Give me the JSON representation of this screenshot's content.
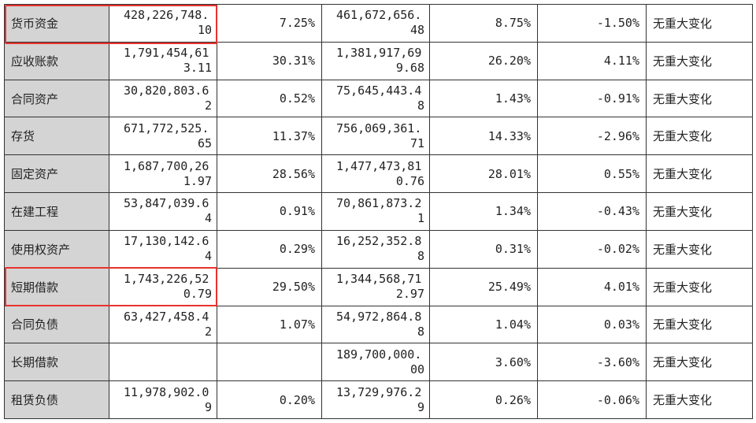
{
  "rows": [
    {
      "label": "货币资金",
      "cur_a": "428,226,748.",
      "cur_b": "10",
      "cur_pct": "7.25%",
      "prev_a": "461,672,656.",
      "prev_b": "48",
      "prev_pct": "8.75%",
      "change": "-1.50%",
      "note": "无重大变化",
      "highlight": true
    },
    {
      "label": "应收账款",
      "cur_a": "1,791,454,61",
      "cur_b": "3.11",
      "cur_pct": "30.31%",
      "prev_a": "1,381,917,69",
      "prev_b": "9.68",
      "prev_pct": "26.20%",
      "change": "4.11%",
      "note": "无重大变化",
      "highlight": false
    },
    {
      "label": "合同资产",
      "cur_a": "30,820,803.6",
      "cur_b": "2",
      "cur_pct": "0.52%",
      "prev_a": "75,645,443.4",
      "prev_b": "8",
      "prev_pct": "1.43%",
      "change": "-0.91%",
      "note": "无重大变化",
      "highlight": false
    },
    {
      "label": "存货",
      "cur_a": "671,772,525.",
      "cur_b": "65",
      "cur_pct": "11.37%",
      "prev_a": "756,069,361.",
      "prev_b": "71",
      "prev_pct": "14.33%",
      "change": "-2.96%",
      "note": "无重大变化",
      "highlight": false
    },
    {
      "label": "固定资产",
      "cur_a": "1,687,700,26",
      "cur_b": "1.97",
      "cur_pct": "28.56%",
      "prev_a": "1,477,473,81",
      "prev_b": "0.76",
      "prev_pct": "28.01%",
      "change": "0.55%",
      "note": "无重大变化",
      "highlight": false
    },
    {
      "label": "在建工程",
      "cur_a": "53,847,039.6",
      "cur_b": "4",
      "cur_pct": "0.91%",
      "prev_a": "70,861,873.2",
      "prev_b": "1",
      "prev_pct": "1.34%",
      "change": "-0.43%",
      "note": "无重大变化",
      "highlight": false
    },
    {
      "label": "使用权资产",
      "cur_a": "17,130,142.6",
      "cur_b": "4",
      "cur_pct": "0.29%",
      "prev_a": "16,252,352.8",
      "prev_b": "8",
      "prev_pct": "0.31%",
      "change": "-0.02%",
      "note": "无重大变化",
      "highlight": false
    },
    {
      "label": "短期借款",
      "cur_a": "1,743,226,52",
      "cur_b": "0.79",
      "cur_pct": "29.50%",
      "prev_a": "1,344,568,71",
      "prev_b": "2.97",
      "prev_pct": "25.49%",
      "change": "4.01%",
      "note": "无重大变化",
      "highlight": true
    },
    {
      "label": "合同负债",
      "cur_a": "63,427,458.4",
      "cur_b": "2",
      "cur_pct": "1.07%",
      "prev_a": "54,972,864.8",
      "prev_b": "8",
      "prev_pct": "1.04%",
      "change": "0.03%",
      "note": "无重大变化",
      "highlight": false
    },
    {
      "label": "长期借款",
      "cur_a": "",
      "cur_b": "",
      "cur_pct": "",
      "prev_a": "189,700,000.",
      "prev_b": "00",
      "prev_pct": "3.60%",
      "change": "-3.60%",
      "note": "无重大变化",
      "highlight": false
    },
    {
      "label": "租赁负债",
      "cur_a": "11,978,902.0",
      "cur_b": "9",
      "cur_pct": "0.20%",
      "prev_a": "13,729,976.2",
      "prev_b": "9",
      "prev_pct": "0.26%",
      "change": "-0.06%",
      "note": "无重大变化",
      "highlight": false
    }
  ],
  "colors": {
    "highlight_border": "#e8322e",
    "label_bg": "#d4d4d4",
    "grid_line": "#333333"
  }
}
